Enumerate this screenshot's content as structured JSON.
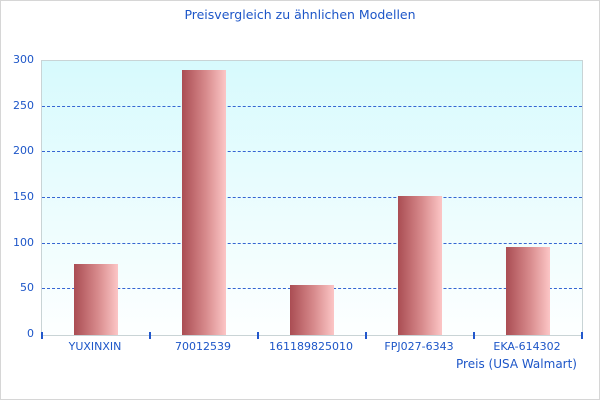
{
  "window": {
    "background": "#ffffff",
    "border_color": "#d6d6d6"
  },
  "chart_data": {
    "type": "bar",
    "title": "Preisvergleich zu ähnlichen Modellen",
    "xlabel": "Preis (USA Walmart)",
    "ylabel": "",
    "categories": [
      "YUXINXIN",
      "70012539",
      "161189825010",
      "FPJ027-6343",
      "EKA-614302"
    ],
    "values": [
      78,
      290,
      55,
      152,
      96
    ],
    "ylim": [
      0,
      300
    ],
    "yticks": [
      0,
      50,
      100,
      150,
      200,
      250,
      300
    ],
    "grid": "horizontal-dashed",
    "legend": "none",
    "colors": {
      "title_text": "#1d56c8",
      "axis_text": "#1d56c8",
      "gridline": "#3565d2",
      "tick_mark": "#2258cc",
      "bar_gradient_left": "#aa4d53",
      "bar_gradient_right": "#fcc6c6",
      "plot_bg_top": "#d7fafd",
      "plot_bg_bottom": "#fdffff",
      "plot_border": "#c9d4d6"
    }
  }
}
